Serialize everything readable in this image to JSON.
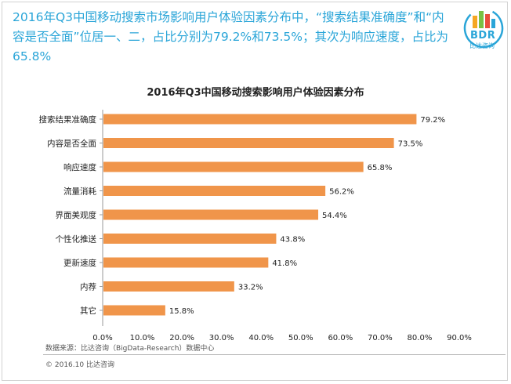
{
  "headline": "2016年Q3中国移动搜索市场影响用户体验因素分布中，“搜索结果准确度”和“内容是否全面”位居一、二，占比分别为79.2%和73.5%；其次为响应速度，占比为65.8%",
  "logo": {
    "text": "BDR",
    "subtext": "比达咨询"
  },
  "chart_data": {
    "type": "bar",
    "orientation": "horizontal",
    "title": "2016年Q3中国移动搜索影响用户体验因素分布",
    "categories": [
      "搜索结果准确度",
      "内容是否全面",
      "响应速度",
      "流量消耗",
      "界面美观度",
      "个性化推送",
      "更新速度",
      "内荐",
      "其它"
    ],
    "values": [
      79.2,
      73.5,
      65.8,
      56.2,
      54.4,
      43.8,
      41.8,
      33.2,
      15.8
    ],
    "data_labels": [
      "79.2%",
      "73.5%",
      "65.8%",
      "56.2%",
      "54.4%",
      "43.8%",
      "41.8%",
      "33.2%",
      "15.8%"
    ],
    "xlim": [
      0,
      90
    ],
    "x_ticks": [
      "0.0%",
      "10.0%",
      "20.0%",
      "30.0%",
      "40.0%",
      "50.0%",
      "60.0%",
      "70.0%",
      "80.0%",
      "90.0%"
    ],
    "bar_color": "#f0954a",
    "grid": false,
    "legend": "none"
  },
  "footer": {
    "source": "数据来源：比达咨询（BigData-Research）数据中心",
    "copyright": "© 2016.10 比达咨询"
  },
  "colors": {
    "accent": "#2aa5d8",
    "bar": "#f0954a"
  }
}
